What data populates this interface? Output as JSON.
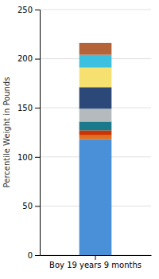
{
  "chart_data": {
    "type": "bar",
    "stacked": true,
    "categories": [
      "Boy 19 years 9 months"
    ],
    "series": [
      {
        "color": "#4A90D9",
        "values": [
          118
        ]
      },
      {
        "color": "#E07020",
        "values": [
          4
        ]
      },
      {
        "color": "#CC3300",
        "values": [
          5
        ]
      },
      {
        "color": "#1A7A8C",
        "values": [
          9
        ]
      },
      {
        "color": "#B5BBBD",
        "values": [
          13
        ]
      },
      {
        "color": "#2B4878",
        "values": [
          22
        ]
      },
      {
        "color": "#F5E070",
        "values": [
          20
        ]
      },
      {
        "color": "#3BC0E0",
        "values": [
          13
        ]
      },
      {
        "color": "#B5643A",
        "values": [
          12
        ]
      }
    ],
    "ylabel": "Percentile Weight in Pounds",
    "ylim": [
      0,
      250
    ],
    "yticks": [
      0,
      50,
      100,
      150,
      200,
      250
    ],
    "grid": true
  }
}
